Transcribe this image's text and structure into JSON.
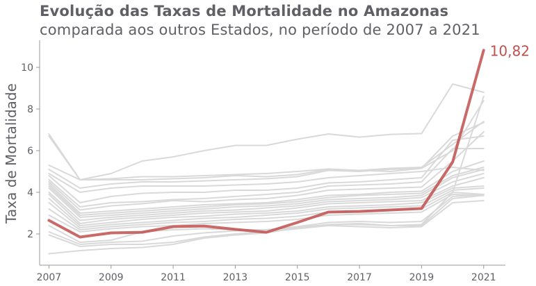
{
  "title": "Evolução das Taxas de Mortalidade no Amazonas",
  "subtitle": "comparada aos outros Estados, no período de 2007 a 2021",
  "chart_data": {
    "type": "line",
    "ylabel": "Taxa de Mortalidade",
    "xlabel": "",
    "xlim": [
      2006.7,
      2021.7
    ],
    "ylim": [
      0.5,
      11.3
    ],
    "x": [
      2007,
      2008,
      2009,
      2010,
      2011,
      2012,
      2013,
      2014,
      2015,
      2016,
      2017,
      2018,
      2019,
      2020,
      2021
    ],
    "xticks": [
      2007,
      2009,
      2011,
      2013,
      2015,
      2017,
      2019,
      2021
    ],
    "yticks": [
      2,
      4,
      6,
      8,
      10
    ],
    "highlight": {
      "name": "Amazonas",
      "color": "#c0504d",
      "values": [
        2.65,
        1.85,
        2.05,
        2.08,
        2.35,
        2.38,
        2.22,
        2.08,
        2.55,
        3.05,
        3.08,
        3.15,
        3.22,
        5.45,
        10.82
      ],
      "end_label": "10,82"
    },
    "other_color": "#d9d9d9",
    "others": [
      [
        6.8,
        4.6,
        4.9,
        5.5,
        5.7,
        6.0,
        6.25,
        6.25,
        6.55,
        6.8,
        6.65,
        6.78,
        6.82,
        9.2,
        8.8
      ],
      [
        6.7,
        4.6,
        4.65,
        4.75,
        4.75,
        4.8,
        4.85,
        4.9,
        5.0,
        5.12,
        5.05,
        5.15,
        5.2,
        6.3,
        7.4
      ],
      [
        5.3,
        4.6,
        4.6,
        4.6,
        4.65,
        4.7,
        4.8,
        4.75,
        4.85,
        5.1,
        5.05,
        5.0,
        5.15,
        6.0,
        8.4
      ],
      [
        5.1,
        4.2,
        4.4,
        4.5,
        4.5,
        4.55,
        4.6,
        4.65,
        4.75,
        5.05,
        5.0,
        5.1,
        5.15,
        6.7,
        7.35
      ],
      [
        4.9,
        4.0,
        4.2,
        4.3,
        4.3,
        4.3,
        4.35,
        4.4,
        4.5,
        4.7,
        4.8,
        4.9,
        5.0,
        5.2,
        5.05
      ],
      [
        4.8,
        3.5,
        3.8,
        3.95,
        4.0,
        4.0,
        4.1,
        4.1,
        4.2,
        4.45,
        4.5,
        4.6,
        4.7,
        6.5,
        6.7
      ],
      [
        4.6,
        3.3,
        3.5,
        3.55,
        3.65,
        3.7,
        3.8,
        3.9,
        4.0,
        4.3,
        4.35,
        4.4,
        4.5,
        6.1,
        6.1
      ],
      [
        4.5,
        3.15,
        3.35,
        3.45,
        3.6,
        3.55,
        3.65,
        3.7,
        3.85,
        4.1,
        4.15,
        4.2,
        4.25,
        5.5,
        6.9
      ],
      [
        4.4,
        3.0,
        3.1,
        3.2,
        3.3,
        3.4,
        3.45,
        3.5,
        3.65,
        3.85,
        3.9,
        4.0,
        4.05,
        5.0,
        5.5
      ],
      [
        4.3,
        2.9,
        3.0,
        3.1,
        3.2,
        3.3,
        3.4,
        3.45,
        3.55,
        3.75,
        3.85,
        3.9,
        3.95,
        4.8,
        5.2
      ],
      [
        4.2,
        2.8,
        2.9,
        3.0,
        3.1,
        3.2,
        3.3,
        3.35,
        3.45,
        3.65,
        3.7,
        3.75,
        3.85,
        4.7,
        5.1
      ],
      [
        4.0,
        2.65,
        2.8,
        2.9,
        3.0,
        3.1,
        3.15,
        3.25,
        3.35,
        3.55,
        3.6,
        3.65,
        3.75,
        4.5,
        4.9
      ],
      [
        3.9,
        2.5,
        2.7,
        2.8,
        2.9,
        3.0,
        3.05,
        3.1,
        3.25,
        3.45,
        3.5,
        3.55,
        3.6,
        4.3,
        4.7
      ],
      [
        3.7,
        2.4,
        2.55,
        2.7,
        2.8,
        2.85,
        2.95,
        3.0,
        3.1,
        3.3,
        3.35,
        3.4,
        3.5,
        4.2,
        4.3
      ],
      [
        3.5,
        2.3,
        2.45,
        2.55,
        2.65,
        2.75,
        2.8,
        2.9,
        3.0,
        3.2,
        3.25,
        3.3,
        3.35,
        4.1,
        4.2
      ],
      [
        3.2,
        2.2,
        2.35,
        2.45,
        2.55,
        2.6,
        2.7,
        2.75,
        2.85,
        3.05,
        3.1,
        3.15,
        3.2,
        4.0,
        3.9
      ],
      [
        2.9,
        2.1,
        2.25,
        2.35,
        2.4,
        2.5,
        2.55,
        2.6,
        2.7,
        2.9,
        2.95,
        3.0,
        3.05,
        3.9,
        3.85
      ],
      [
        2.4,
        1.6,
        1.7,
        2.1,
        2.2,
        2.25,
        2.2,
        2.2,
        2.35,
        2.55,
        2.6,
        2.55,
        2.6,
        3.8,
        3.9
      ],
      [
        2.1,
        1.5,
        1.6,
        1.65,
        1.9,
        2.05,
        2.15,
        2.2,
        2.3,
        2.45,
        2.45,
        2.4,
        2.45,
        4.0,
        8.6
      ],
      [
        1.95,
        1.4,
        1.5,
        1.5,
        1.6,
        1.85,
        2.0,
        2.1,
        2.25,
        2.4,
        2.35,
        2.3,
        2.35,
        3.5,
        3.6
      ],
      [
        1.05,
        1.2,
        1.3,
        1.35,
        1.5,
        1.8,
        1.95,
        2.05,
        2.3,
        2.45,
        2.5,
        2.4,
        2.4,
        3.7,
        3.85
      ]
    ]
  }
}
